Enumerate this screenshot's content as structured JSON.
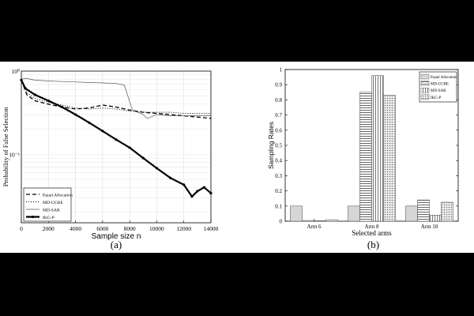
{
  "chart_data": [
    {
      "type": "line",
      "caption": "(a)",
      "xlabel": "Sample size n",
      "ylabel": "Probability of False Selection",
      "xlim": [
        0,
        14000
      ],
      "ylim": [
        0.015,
        1
      ],
      "yscale": "log",
      "xticks": [
        0,
        2000,
        4000,
        6000,
        8000,
        10000,
        12000,
        14000
      ],
      "yticks": [
        {
          "value": 1,
          "label": "10⁰"
        },
        {
          "value": 0.1,
          "label": "10⁻¹"
        }
      ],
      "grid": true,
      "legend_position": "bottom-left",
      "series": [
        {
          "name": "Equal Allocation",
          "style": "dashed",
          "x": [
            0,
            400,
            1000,
            2000,
            3000,
            4000,
            5000,
            6000,
            7000,
            8000,
            9000,
            10000,
            11000,
            12000,
            13000,
            14000
          ],
          "y": [
            0.78,
            0.52,
            0.44,
            0.4,
            0.37,
            0.35,
            0.36,
            0.39,
            0.37,
            0.34,
            0.32,
            0.31,
            0.3,
            0.29,
            0.28,
            0.27
          ]
        },
        {
          "name": "MD-UCBE",
          "style": "dotted",
          "x": [
            0,
            400,
            1000,
            2000,
            3000,
            4000,
            5000,
            6000,
            7000,
            8000,
            9000,
            10000,
            11000,
            12000,
            13000,
            14000
          ],
          "y": [
            0.78,
            0.55,
            0.47,
            0.42,
            0.39,
            0.36,
            0.35,
            0.36,
            0.35,
            0.33,
            0.32,
            0.32,
            0.32,
            0.31,
            0.31,
            0.31
          ]
        },
        {
          "name": "MD-SAR",
          "style": "solid-thin",
          "x": [
            0,
            300,
            1000,
            2000,
            3000,
            4000,
            5000,
            6000,
            7000,
            7600,
            8200,
            9000,
            9300,
            10000,
            11000,
            12000,
            13000,
            14000
          ],
          "y": [
            0.8,
            0.82,
            0.78,
            0.76,
            0.75,
            0.74,
            0.73,
            0.72,
            0.71,
            0.68,
            0.34,
            0.3,
            0.27,
            0.3,
            0.29,
            0.29,
            0.29,
            0.29
          ]
        },
        {
          "name": "IKG-P",
          "style": "solid-thick-markers",
          "x": [
            0,
            300,
            1000,
            2000,
            3000,
            4000,
            5000,
            6000,
            7000,
            8000,
            9000,
            10000,
            11000,
            12000,
            12600,
            13000,
            13500,
            14000
          ],
          "y": [
            0.78,
            0.62,
            0.52,
            0.44,
            0.37,
            0.3,
            0.24,
            0.19,
            0.15,
            0.12,
            0.09,
            0.068,
            0.052,
            0.043,
            0.031,
            0.036,
            0.04,
            0.034
          ]
        }
      ]
    },
    {
      "type": "bar",
      "caption": "(b)",
      "xlabel": "Selected arms",
      "ylabel": "Sampling Rates",
      "ylim": [
        0,
        1
      ],
      "yticks": [
        0,
        0.1,
        0.2,
        0.3,
        0.4,
        0.5,
        0.6,
        0.7,
        0.8,
        0.9,
        1
      ],
      "categories": [
        "Arm 6",
        "Arm 8",
        "Arm 10"
      ],
      "legend_position": "top-right",
      "series": [
        {
          "name": "Equal Allocation",
          "pattern": "solid-light",
          "values": [
            0.1,
            0.1,
            0.1
          ]
        },
        {
          "name": "MD-UCBE",
          "pattern": "horizontal-lines",
          "values": [
            0.005,
            0.85,
            0.14
          ]
        },
        {
          "name": "MD-SAR",
          "pattern": "vertical-lines",
          "values": [
            0.003,
            0.96,
            0.04
          ]
        },
        {
          "name": "IKG-P",
          "pattern": "dots",
          "values": [
            0.01,
            0.83,
            0.125
          ]
        }
      ]
    }
  ]
}
